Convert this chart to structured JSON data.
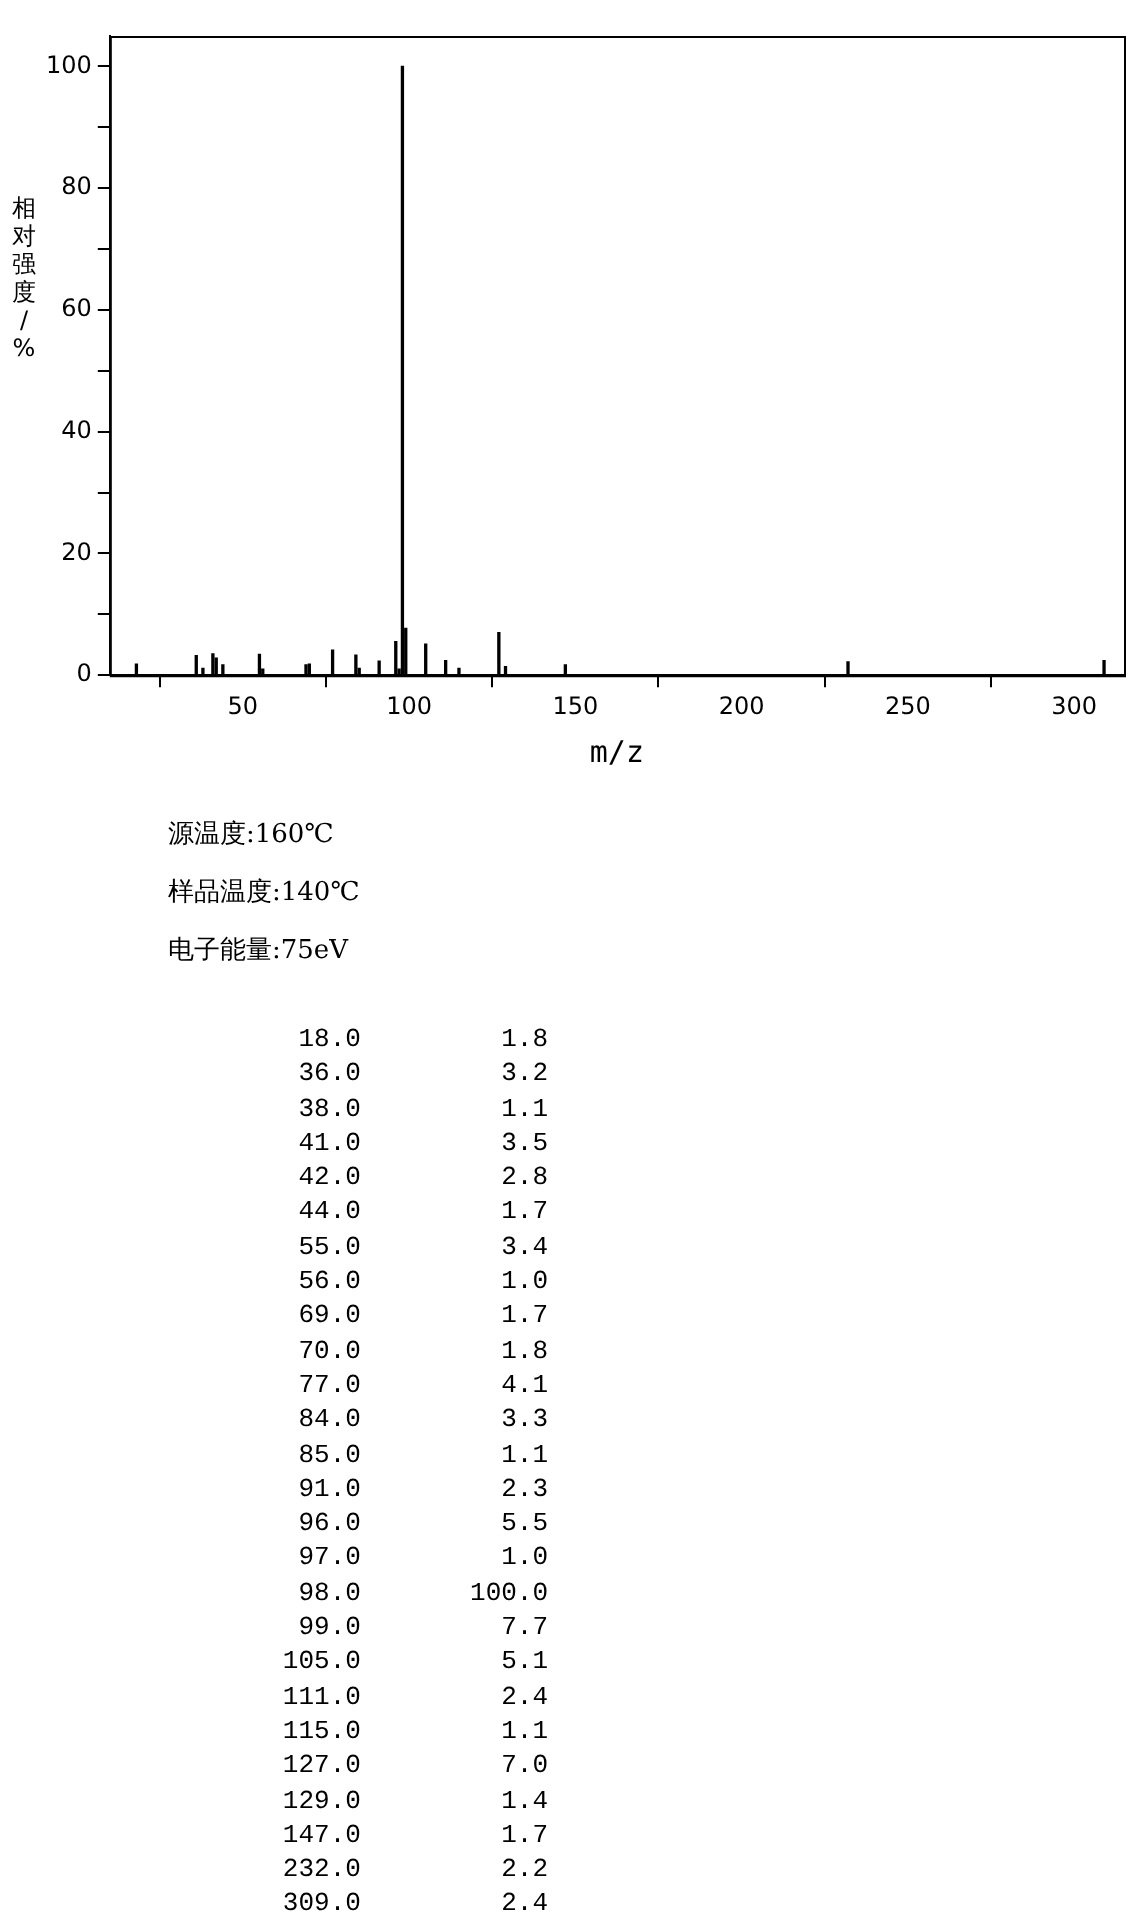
{
  "chart_data": {
    "type": "bar",
    "xlabel": "m/z",
    "ylabel": "相对强度/%",
    "x": [
      18,
      36,
      38,
      41,
      42,
      44,
      55,
      56,
      69,
      70,
      77,
      84,
      85,
      91,
      96,
      97,
      98,
      99,
      105,
      111,
      115,
      127,
      129,
      147,
      232,
      309
    ],
    "values": [
      1.8,
      3.2,
      1.1,
      3.5,
      2.8,
      1.7,
      3.4,
      1.0,
      1.7,
      1.8,
      4.1,
      3.3,
      1.1,
      2.3,
      5.5,
      1.0,
      100.0,
      7.7,
      5.1,
      2.4,
      1.1,
      7.0,
      1.4,
      1.7,
      2.2,
      2.4
    ],
    "color": "#000000",
    "xlim": [
      10,
      315
    ],
    "xticks": [
      50,
      100,
      150,
      200,
      250,
      300
    ],
    "ylim": [
      0,
      105
    ],
    "yticks": [
      0,
      {
        "value": 10,
        "label": null
      },
      20,
      {
        "value": 30,
        "label": null
      },
      40,
      {
        "value": 50,
        "label": null
      },
      60,
      {
        "value": 70,
        "label": null
      },
      80,
      {
        "value": 90,
        "label": null
      },
      100
    ],
    "grid": false,
    "legend": false,
    "annotations": [
      "源温度:160℃",
      "样品温度:140℃",
      "电子能量:75eV",
      "              18.0         1.8",
      "              36.0         3.2",
      "              38.0         1.1",
      "              41.0         3.5",
      "              42.0         2.8",
      "              44.0         1.7",
      "              55.0         3.4",
      "              56.0         1.0",
      "              69.0         1.7",
      "              70.0         1.8",
      "              77.0         4.1",
      "              84.0         3.3",
      "              85.0         1.1",
      "              91.0         2.3",
      "              96.0         5.5",
      "              97.0         1.0",
      "              98.0       100.0",
      "              99.0         7.7",
      "             105.0         5.1",
      "             111.0         2.4",
      "             115.0         1.1",
      "             127.0         7.0",
      "             129.0         1.4",
      "             147.0         1.7",
      "             232.0         2.2",
      "             309.0         2.4"
    ]
  }
}
